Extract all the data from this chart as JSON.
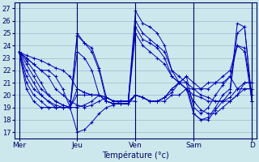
{
  "xlabel": "Température (°c)",
  "background_color": "#cce8ec",
  "grid_color": "#a0b8cc",
  "line_color": "#0000bb",
  "marker": "+",
  "yticks": [
    17,
    18,
    19,
    20,
    21,
    22,
    23,
    24,
    25,
    26,
    27
  ],
  "ylim": [
    16.5,
    27.5
  ],
  "day_labels": [
    "Mer",
    "Jeu",
    "Ven",
    "Sam",
    "D"
  ],
  "day_positions": [
    0,
    24,
    48,
    72,
    96
  ],
  "xlim": [
    -2,
    98
  ],
  "series": [
    {
      "x": [
        0,
        3,
        6,
        9,
        12,
        15,
        18,
        21,
        24,
        27,
        30,
        33,
        36,
        39,
        42,
        45,
        48,
        51,
        54,
        57,
        60,
        63,
        66,
        69,
        72,
        75,
        78,
        81,
        84,
        87,
        90,
        93,
        96
      ],
      "y": [
        23.5,
        23.0,
        22.5,
        22.0,
        21.5,
        20.5,
        20.0,
        19.5,
        19.2,
        19.0,
        19.2,
        19.5,
        19.8,
        19.5,
        19.5,
        19.5,
        26.8,
        25.8,
        25.5,
        25.0,
        24.0,
        22.0,
        21.5,
        21.0,
        20.5,
        20.0,
        19.8,
        19.5,
        19.5,
        19.5,
        20.0,
        20.5,
        20.5
      ]
    },
    {
      "x": [
        0,
        3,
        6,
        9,
        12,
        15,
        18,
        21,
        24,
        27,
        30,
        33,
        36,
        39,
        42,
        45,
        48,
        51,
        54,
        57,
        60,
        63,
        66,
        69,
        72,
        75,
        78,
        81,
        84,
        87,
        90,
        93,
        96
      ],
      "y": [
        23.5,
        22.8,
        22.0,
        21.0,
        20.0,
        19.5,
        19.2,
        19.0,
        19.0,
        19.2,
        19.5,
        20.0,
        19.8,
        19.5,
        19.5,
        19.5,
        26.0,
        25.0,
        24.5,
        24.0,
        23.5,
        22.0,
        21.0,
        20.5,
        20.0,
        19.8,
        19.5,
        19.5,
        19.5,
        19.8,
        20.5,
        21.0,
        21.0
      ]
    },
    {
      "x": [
        0,
        3,
        6,
        9,
        12,
        15,
        18,
        21,
        24,
        27,
        30,
        33,
        36,
        39,
        42,
        45,
        48,
        51,
        54,
        57,
        60,
        63,
        66,
        69,
        72,
        75,
        78,
        81,
        84,
        87,
        90,
        93,
        96
      ],
      "y": [
        23.5,
        22.5,
        21.5,
        20.5,
        20.0,
        19.5,
        19.2,
        19.0,
        24.8,
        24.2,
        23.8,
        22.2,
        19.8,
        19.5,
        19.5,
        19.5,
        25.5,
        24.5,
        24.2,
        23.8,
        23.0,
        21.5,
        21.0,
        20.5,
        19.5,
        18.8,
        18.5,
        18.5,
        19.0,
        19.5,
        20.0,
        21.0,
        21.0
      ]
    },
    {
      "x": [
        0,
        3,
        6,
        9,
        12,
        15,
        18,
        21,
        24,
        27,
        30,
        33,
        36,
        39,
        42,
        45,
        48,
        51,
        54,
        57,
        60,
        63,
        66,
        69,
        72,
        75,
        78,
        81,
        84,
        87,
        90,
        93,
        96
      ],
      "y": [
        23.5,
        22.0,
        21.0,
        20.0,
        19.5,
        19.0,
        19.0,
        19.0,
        25.0,
        24.2,
        23.5,
        22.0,
        19.5,
        19.3,
        19.3,
        19.3,
        25.0,
        24.0,
        23.5,
        23.0,
        22.5,
        21.5,
        21.0,
        20.5,
        18.5,
        18.0,
        18.0,
        18.8,
        19.5,
        20.2,
        25.0,
        25.5,
        19.5
      ]
    },
    {
      "x": [
        0,
        3,
        6,
        9,
        12,
        15,
        18,
        21,
        24,
        27,
        30,
        33,
        36,
        39,
        42,
        45,
        48,
        51,
        54,
        57,
        60,
        63,
        66,
        69,
        72,
        75,
        78,
        81,
        84,
        87,
        90,
        93,
        96
      ],
      "y": [
        23.5,
        21.5,
        20.5,
        20.0,
        19.5,
        19.2,
        19.0,
        19.0,
        23.5,
        23.0,
        22.0,
        20.0,
        19.5,
        19.3,
        19.3,
        19.3,
        20.0,
        19.8,
        19.5,
        19.5,
        19.8,
        20.5,
        21.0,
        21.0,
        18.5,
        18.0,
        18.2,
        19.0,
        20.0,
        20.5,
        25.8,
        25.5,
        19.5
      ]
    },
    {
      "x": [
        0,
        3,
        6,
        9,
        12,
        15,
        18,
        21,
        24,
        27,
        30,
        33,
        36,
        39,
        42,
        45,
        48,
        51,
        54,
        57,
        60,
        63,
        66,
        69,
        72,
        75,
        78,
        81,
        84,
        87,
        90,
        93,
        96
      ],
      "y": [
        23.5,
        21.0,
        20.0,
        19.5,
        19.0,
        19.0,
        19.0,
        19.0,
        20.0,
        20.0,
        20.0,
        20.0,
        19.5,
        19.3,
        19.3,
        19.3,
        20.0,
        19.8,
        19.5,
        19.5,
        19.8,
        20.5,
        21.0,
        21.5,
        19.0,
        18.5,
        19.0,
        20.0,
        20.8,
        21.5,
        24.0,
        23.5,
        19.5
      ]
    },
    {
      "x": [
        0,
        3,
        6,
        9,
        12,
        15,
        18,
        21,
        24,
        27,
        30,
        33,
        36,
        39,
        42,
        45,
        48,
        51,
        54,
        57,
        60,
        63,
        66,
        69,
        72,
        75,
        78,
        81,
        84,
        87,
        90,
        93,
        96
      ],
      "y": [
        23.5,
        20.5,
        19.5,
        19.0,
        19.0,
        19.0,
        19.0,
        19.0,
        20.5,
        20.2,
        20.0,
        20.0,
        19.5,
        19.3,
        19.3,
        19.3,
        20.0,
        19.8,
        19.5,
        19.5,
        19.8,
        20.2,
        21.0,
        21.5,
        21.0,
        20.5,
        20.5,
        21.0,
        21.0,
        21.5,
        20.5,
        20.5,
        20.5
      ]
    },
    {
      "x": [
        0,
        3,
        6,
        9,
        12,
        15,
        18,
        21,
        24,
        27,
        30,
        33,
        36,
        39,
        42,
        45,
        48
      ],
      "y": [
        23.5,
        23.0,
        22.5,
        22.0,
        22.0,
        21.5,
        20.5,
        19.0,
        17.0,
        17.2,
        17.8,
        18.5,
        19.0,
        19.2,
        19.5,
        19.5,
        19.5
      ]
    },
    {
      "x": [
        0,
        3,
        6,
        9,
        12,
        15,
        18,
        21,
        24,
        27,
        30,
        33,
        36,
        39,
        42,
        45,
        48,
        51,
        54,
        57,
        60,
        63,
        66,
        69,
        72,
        75,
        78,
        81,
        84,
        87,
        90,
        93,
        96
      ],
      "y": [
        23.5,
        23.2,
        23.0,
        22.8,
        22.5,
        22.2,
        22.0,
        21.5,
        20.5,
        20.2,
        20.0,
        20.0,
        19.8,
        19.5,
        19.5,
        19.5,
        20.0,
        19.8,
        19.5,
        19.5,
        19.5,
        20.0,
        20.0,
        20.5,
        20.5,
        20.5,
        21.0,
        21.0,
        21.5,
        22.0,
        24.0,
        23.8,
        20.0
      ]
    }
  ]
}
